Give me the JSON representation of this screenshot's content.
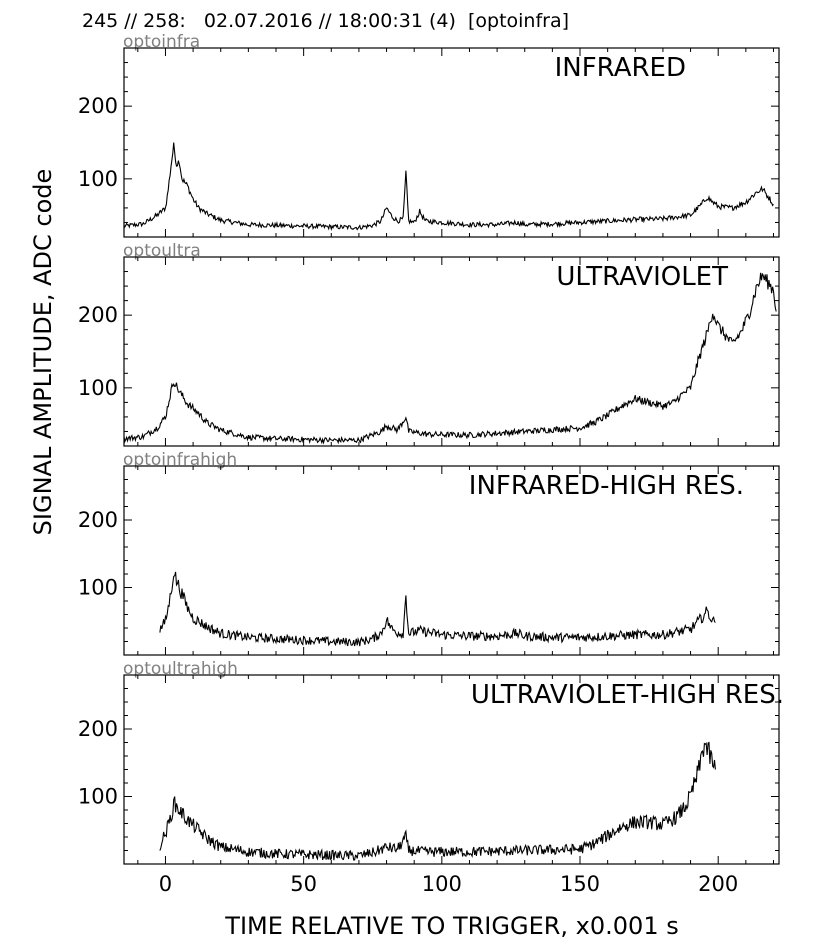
{
  "header": "245 // 258:   02.07.2016 // 18:00:31 (4)  [optoinfra]",
  "chart_data": {
    "type": "line",
    "xlabel": "TIME RELATIVE TO TRIGGER,   x0.001 s",
    "ylabel": "SIGNAL AMPLITUDE,  ADC code",
    "xlim": [
      -15,
      222
    ],
    "xticks": [
      0,
      50,
      100,
      150,
      200
    ],
    "grid": false,
    "panels": [
      {
        "channel": "optoinfra",
        "title": "INFRARED",
        "ylim": [
          20,
          280
        ],
        "yticks": [
          100,
          200
        ],
        "noise": 4,
        "points": [
          [
            -15,
            35
          ],
          [
            -8,
            38
          ],
          [
            -3,
            50
          ],
          [
            0,
            60
          ],
          [
            1,
            85
          ],
          [
            2,
            118
          ],
          [
            3,
            145
          ],
          [
            4,
            120
          ],
          [
            5,
            125
          ],
          [
            6,
            100
          ],
          [
            8,
            90
          ],
          [
            10,
            72
          ],
          [
            12,
            60
          ],
          [
            15,
            52
          ],
          [
            20,
            43
          ],
          [
            30,
            37
          ],
          [
            40,
            36
          ],
          [
            50,
            35
          ],
          [
            60,
            34
          ],
          [
            70,
            33
          ],
          [
            75,
            36
          ],
          [
            78,
            42
          ],
          [
            80,
            60
          ],
          [
            82,
            48
          ],
          [
            84,
            42
          ],
          [
            86,
            45
          ],
          [
            87,
            108
          ],
          [
            88,
            42
          ],
          [
            90,
            40
          ],
          [
            92,
            55
          ],
          [
            94,
            42
          ],
          [
            100,
            40
          ],
          [
            110,
            37
          ],
          [
            120,
            37
          ],
          [
            127,
            40
          ],
          [
            130,
            37
          ],
          [
            140,
            38
          ],
          [
            150,
            40
          ],
          [
            160,
            42
          ],
          [
            170,
            44
          ],
          [
            180,
            45
          ],
          [
            190,
            50
          ],
          [
            194,
            65
          ],
          [
            196,
            75
          ],
          [
            198,
            68
          ],
          [
            200,
            62
          ],
          [
            205,
            60
          ],
          [
            210,
            68
          ],
          [
            214,
            82
          ],
          [
            216,
            86
          ],
          [
            218,
            76
          ],
          [
            220,
            65
          ]
        ]
      },
      {
        "channel": "optoultra",
        "title": "ULTRAVIOLET",
        "ylim": [
          20,
          280
        ],
        "yticks": [
          100,
          200
        ],
        "noise": 5,
        "points": [
          [
            -15,
            30
          ],
          [
            -8,
            33
          ],
          [
            -3,
            45
          ],
          [
            0,
            60
          ],
          [
            2,
            95
          ],
          [
            3,
            110
          ],
          [
            5,
            95
          ],
          [
            8,
            78
          ],
          [
            12,
            65
          ],
          [
            15,
            52
          ],
          [
            20,
            42
          ],
          [
            30,
            32
          ],
          [
            40,
            30
          ],
          [
            50,
            29
          ],
          [
            60,
            28
          ],
          [
            70,
            28
          ],
          [
            78,
            40
          ],
          [
            80,
            48
          ],
          [
            84,
            42
          ],
          [
            87,
            60
          ],
          [
            88,
            40
          ],
          [
            95,
            36
          ],
          [
            110,
            35
          ],
          [
            130,
            40
          ],
          [
            150,
            45
          ],
          [
            155,
            52
          ],
          [
            160,
            62
          ],
          [
            165,
            75
          ],
          [
            170,
            85
          ],
          [
            175,
            80
          ],
          [
            180,
            75
          ],
          [
            184,
            80
          ],
          [
            186,
            88
          ],
          [
            190,
            100
          ],
          [
            193,
            140
          ],
          [
            196,
            175
          ],
          [
            198,
            205
          ],
          [
            200,
            185
          ],
          [
            202,
            175
          ],
          [
            205,
            160
          ],
          [
            208,
            175
          ],
          [
            211,
            200
          ],
          [
            214,
            240
          ],
          [
            216,
            255
          ],
          [
            218,
            245
          ],
          [
            220,
            235
          ],
          [
            221,
            205
          ]
        ]
      },
      {
        "channel": "optoinfrahigh",
        "title": "INFRARED-HIGH RES.",
        "ylim": [
          0,
          280
        ],
        "yticks": [
          100,
          200
        ],
        "noise": 9,
        "points": [
          [
            -2,
            38
          ],
          [
            0,
            50
          ],
          [
            1,
            70
          ],
          [
            2,
            92
          ],
          [
            3,
            125
          ],
          [
            4,
            110
          ],
          [
            6,
            90
          ],
          [
            8,
            70
          ],
          [
            10,
            55
          ],
          [
            15,
            42
          ],
          [
            20,
            32
          ],
          [
            30,
            26
          ],
          [
            40,
            24
          ],
          [
            50,
            22
          ],
          [
            60,
            20
          ],
          [
            70,
            19
          ],
          [
            75,
            24
          ],
          [
            78,
            32
          ],
          [
            80,
            52
          ],
          [
            82,
            38
          ],
          [
            84,
            33
          ],
          [
            86,
            32
          ],
          [
            87,
            90
          ],
          [
            88,
            32
          ],
          [
            92,
            36
          ],
          [
            100,
            30
          ],
          [
            110,
            28
          ],
          [
            120,
            28
          ],
          [
            127,
            32
          ],
          [
            130,
            28
          ],
          [
            140,
            26
          ],
          [
            150,
            26
          ],
          [
            160,
            28
          ],
          [
            170,
            30
          ],
          [
            180,
            30
          ],
          [
            190,
            38
          ],
          [
            194,
            55
          ],
          [
            196,
            65
          ],
          [
            198,
            50
          ],
          [
            199,
            48
          ]
        ]
      },
      {
        "channel": "optoultrahigh",
        "title": "ULTRAVIOLET-HIGH RES.",
        "ylim": [
          0,
          280
        ],
        "yticks": [
          100,
          200
        ],
        "noise": 11,
        "points": [
          [
            -2,
            28
          ],
          [
            0,
            45
          ],
          [
            2,
            70
          ],
          [
            3,
            90
          ],
          [
            5,
            80
          ],
          [
            8,
            65
          ],
          [
            12,
            50
          ],
          [
            15,
            38
          ],
          [
            20,
            25
          ],
          [
            30,
            18
          ],
          [
            40,
            15
          ],
          [
            50,
            14
          ],
          [
            60,
            13
          ],
          [
            70,
            12
          ],
          [
            76,
            18
          ],
          [
            80,
            25
          ],
          [
            84,
            22
          ],
          [
            87,
            40
          ],
          [
            88,
            20
          ],
          [
            95,
            18
          ],
          [
            110,
            18
          ],
          [
            130,
            20
          ],
          [
            150,
            22
          ],
          [
            155,
            30
          ],
          [
            160,
            42
          ],
          [
            165,
            55
          ],
          [
            170,
            62
          ],
          [
            175,
            62
          ],
          [
            180,
            58
          ],
          [
            185,
            70
          ],
          [
            188,
            85
          ],
          [
            190,
            100
          ],
          [
            193,
            140
          ],
          [
            195,
            180
          ],
          [
            196,
            170
          ],
          [
            197,
            160
          ],
          [
            198,
            150
          ],
          [
            199,
            140
          ]
        ]
      }
    ]
  }
}
